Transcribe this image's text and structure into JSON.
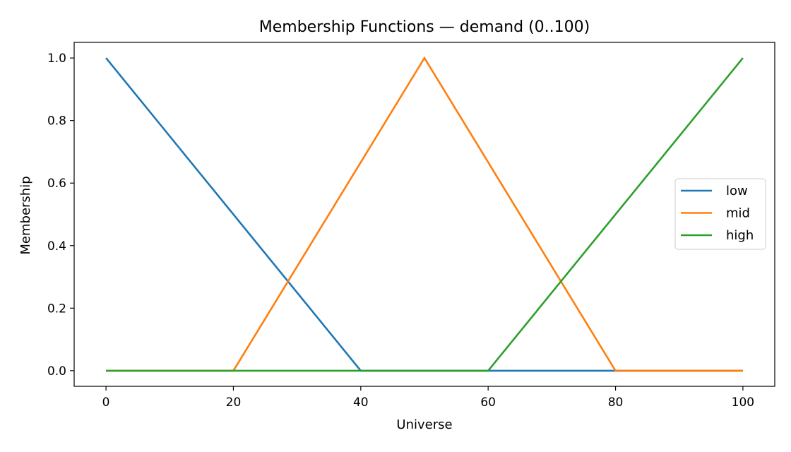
{
  "chart_data": {
    "type": "line",
    "title": "Membership Functions — demand (0..100)",
    "xlabel": "Universe",
    "ylabel": "Membership",
    "xlim": [
      -5,
      105
    ],
    "ylim": [
      -0.05,
      1.05
    ],
    "xticks": [
      "0",
      "20",
      "40",
      "60",
      "80",
      "100"
    ],
    "yticks": [
      "0.0",
      "0.2",
      "0.4",
      "0.6",
      "0.8",
      "1.0"
    ],
    "grid": false,
    "legend_position": "center-right",
    "series": [
      {
        "name": "low",
        "color": "#1f77b4",
        "x": [
          0,
          40,
          100
        ],
        "y": [
          1,
          0,
          0
        ]
      },
      {
        "name": "mid",
        "color": "#ff7f0e",
        "x": [
          0,
          20,
          50,
          80,
          100
        ],
        "y": [
          0,
          0,
          1,
          0,
          0
        ]
      },
      {
        "name": "high",
        "color": "#2ca02c",
        "x": [
          0,
          60,
          100
        ],
        "y": [
          0,
          0,
          1
        ]
      }
    ]
  }
}
